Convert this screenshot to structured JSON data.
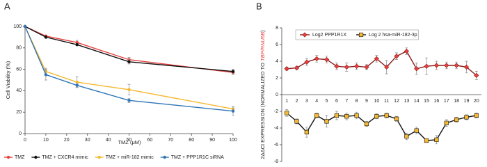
{
  "chart_data": [
    {
      "type": "line",
      "panel_label": "A",
      "x_label": "TMZ (μM)",
      "y_label": "Cell Viability (%)",
      "x": [
        0,
        10,
        25,
        50,
        100
      ],
      "xlim": [
        0,
        100
      ],
      "xticks": [
        0,
        10,
        20,
        30,
        40,
        50,
        60,
        70,
        80,
        90,
        100
      ],
      "ylim": [
        0,
        100
      ],
      "yticks": [
        0,
        20,
        40,
        60,
        80,
        100
      ],
      "legend": "bottom",
      "series": [
        {
          "name": "TMZ",
          "color": "#e8403f",
          "marker": "circle",
          "values": [
            100,
            91,
            85,
            69,
            57
          ],
          "errors": [
            0,
            1,
            2,
            2,
            2
          ]
        },
        {
          "name": "TMZ + CXCR4 mimic",
          "color": "#111111",
          "marker": "circle",
          "values": [
            100,
            90,
            83,
            67,
            58
          ],
          "errors": [
            0,
            1,
            1,
            2,
            2
          ]
        },
        {
          "name": "TMZ + miR-182 mimic",
          "color": "#f5b82e",
          "marker": "circle",
          "values": [
            100,
            58,
            48,
            41,
            23
          ],
          "errors": [
            0,
            3,
            5,
            5,
            2
          ]
        },
        {
          "name": "TMZ + PPP1R1C siRNA",
          "color": "#2e75b6",
          "marker": "circle",
          "values": [
            100,
            55,
            45,
            31,
            21
          ],
          "errors": [
            0,
            5,
            2,
            2,
            4
          ]
        }
      ]
    },
    {
      "type": "line",
      "panel_label": "B",
      "y_label": [
        "2ΔΔCt EXPRESSION (NORMALIZED TO ",
        "TBP/RNU6B",
        ")"
      ],
      "categories": [
        "1",
        "2",
        "3",
        "4",
        "5",
        "6",
        "7",
        "8",
        "9",
        "10",
        "11",
        "12",
        "13",
        "14",
        "15",
        "16",
        "17",
        "18",
        "19",
        "20"
      ],
      "ylim": [
        -8,
        8
      ],
      "yticks": [
        -8,
        -6,
        -4,
        -2,
        0,
        2,
        4,
        6,
        8
      ],
      "legend": "top",
      "series": [
        {
          "name": "Log2 PPP1R1X",
          "color": "#8b1a1a",
          "marker": "diamond",
          "marker_color": "#e8403f",
          "values": [
            3.1,
            3.2,
            3.9,
            4.3,
            4.2,
            3.4,
            3.3,
            3.4,
            3.3,
            4.3,
            3.3,
            4.6,
            5.2,
            3.1,
            3.4,
            3.5,
            3.5,
            3.5,
            3.3,
            2.3
          ],
          "errors": [
            0.2,
            0.2,
            0.4,
            0.4,
            0.4,
            0.4,
            0.5,
            0.4,
            0.3,
            0.4,
            0.8,
            0.4,
            0.4,
            0.7,
            1.0,
            0.5,
            0.4,
            0.4,
            0.7,
            0.5
          ]
        },
        {
          "name": "Log 2 hsa-miR-182-3p",
          "color": "#111111",
          "marker": "square",
          "marker_color": "#f5b82e",
          "values": [
            -2.2,
            -3.2,
            -4.5,
            -2.5,
            -3.2,
            -2.5,
            -2.6,
            -2.5,
            -3.5,
            -2.6,
            -2.5,
            -2.9,
            -5.0,
            -4.3,
            -5.5,
            -5.4,
            -3.4,
            -3.0,
            -2.7,
            -2.5
          ],
          "errors": [
            0.4,
            0.3,
            0.6,
            0.3,
            0.7,
            0.5,
            0.4,
            0.4,
            0.3,
            0.3,
            0.3,
            0.3,
            0.4,
            0.4,
            0.2,
            0.5,
            0.4,
            0.3,
            0.3,
            0.3
          ]
        }
      ]
    }
  ]
}
